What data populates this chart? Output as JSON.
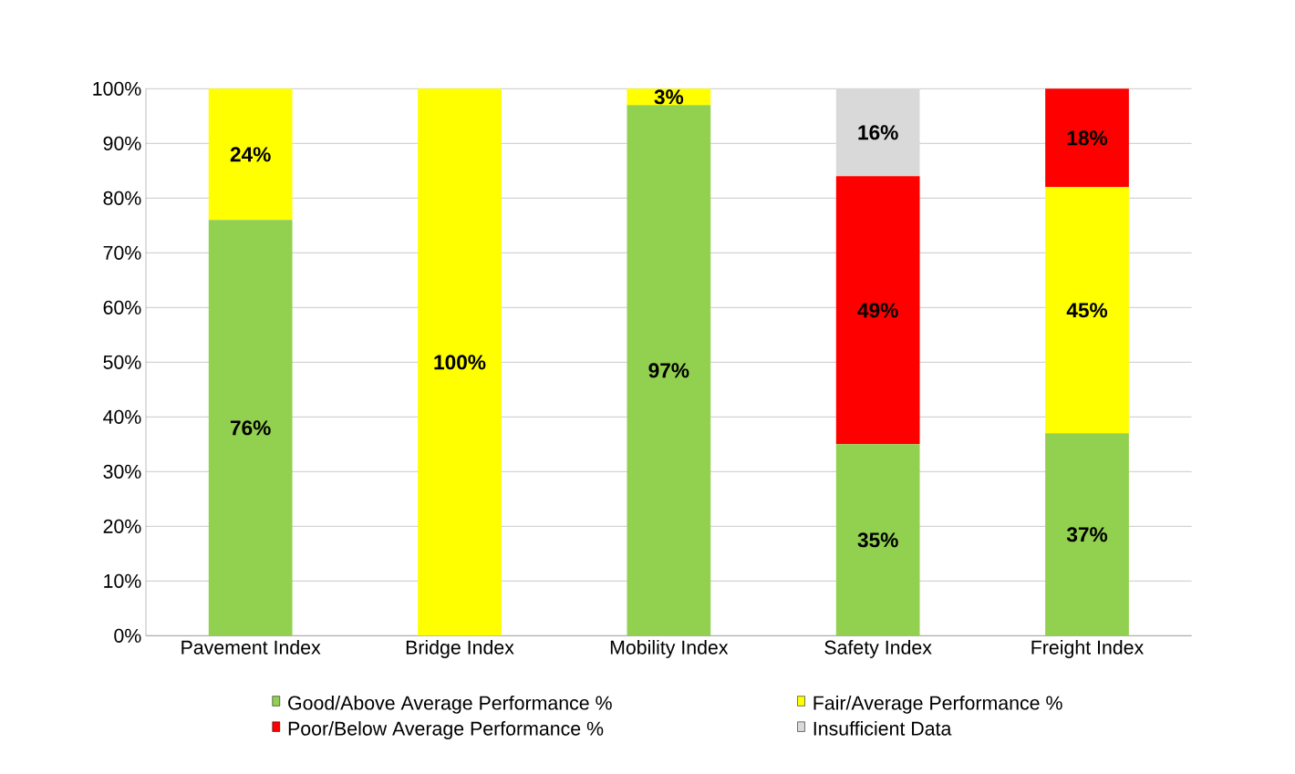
{
  "chart_data": {
    "type": "bar",
    "stacked": true,
    "categories": [
      "Pavement Index",
      "Bridge Index",
      "Mobility Index",
      "Safety Index",
      "Freight Index"
    ],
    "series": [
      {
        "name": "Good/Above Average Performance %",
        "color": "#92d050",
        "values": [
          76,
          null,
          97,
          35,
          37
        ],
        "value_labels": [
          "76%",
          null,
          "97%",
          "35%",
          "37%"
        ]
      },
      {
        "name": "Fair/Average Performance %",
        "color": "#ffff00",
        "values": [
          24,
          100,
          3,
          null,
          45
        ],
        "value_labels": [
          "24%",
          "100%",
          "3%",
          null,
          "45%"
        ]
      },
      {
        "name": "Poor/Below Average Performance %",
        "color": "#ff0000",
        "values": [
          null,
          null,
          null,
          49,
          18
        ],
        "value_labels": [
          null,
          null,
          null,
          "49%",
          "18%"
        ]
      },
      {
        "name": "Insufficient Data",
        "color": "#d9d9d9",
        "values": [
          null,
          null,
          null,
          16,
          null
        ],
        "value_labels": [
          null,
          null,
          null,
          "16%",
          null
        ]
      }
    ],
    "ylim": [
      0,
      100
    ],
    "yticks": [
      {
        "value": 0,
        "label": "0%"
      },
      {
        "value": 10,
        "label": "10%"
      },
      {
        "value": 20,
        "label": "20%"
      },
      {
        "value": 30,
        "label": "30%"
      },
      {
        "value": 40,
        "label": "40%"
      },
      {
        "value": 50,
        "label": "50%"
      },
      {
        "value": 60,
        "label": "60%"
      },
      {
        "value": 70,
        "label": "70%"
      },
      {
        "value": 80,
        "label": "80%"
      },
      {
        "value": 90,
        "label": "90%"
      },
      {
        "value": 100,
        "label": "100%"
      }
    ],
    "grid": "y",
    "legend": "bottom"
  }
}
